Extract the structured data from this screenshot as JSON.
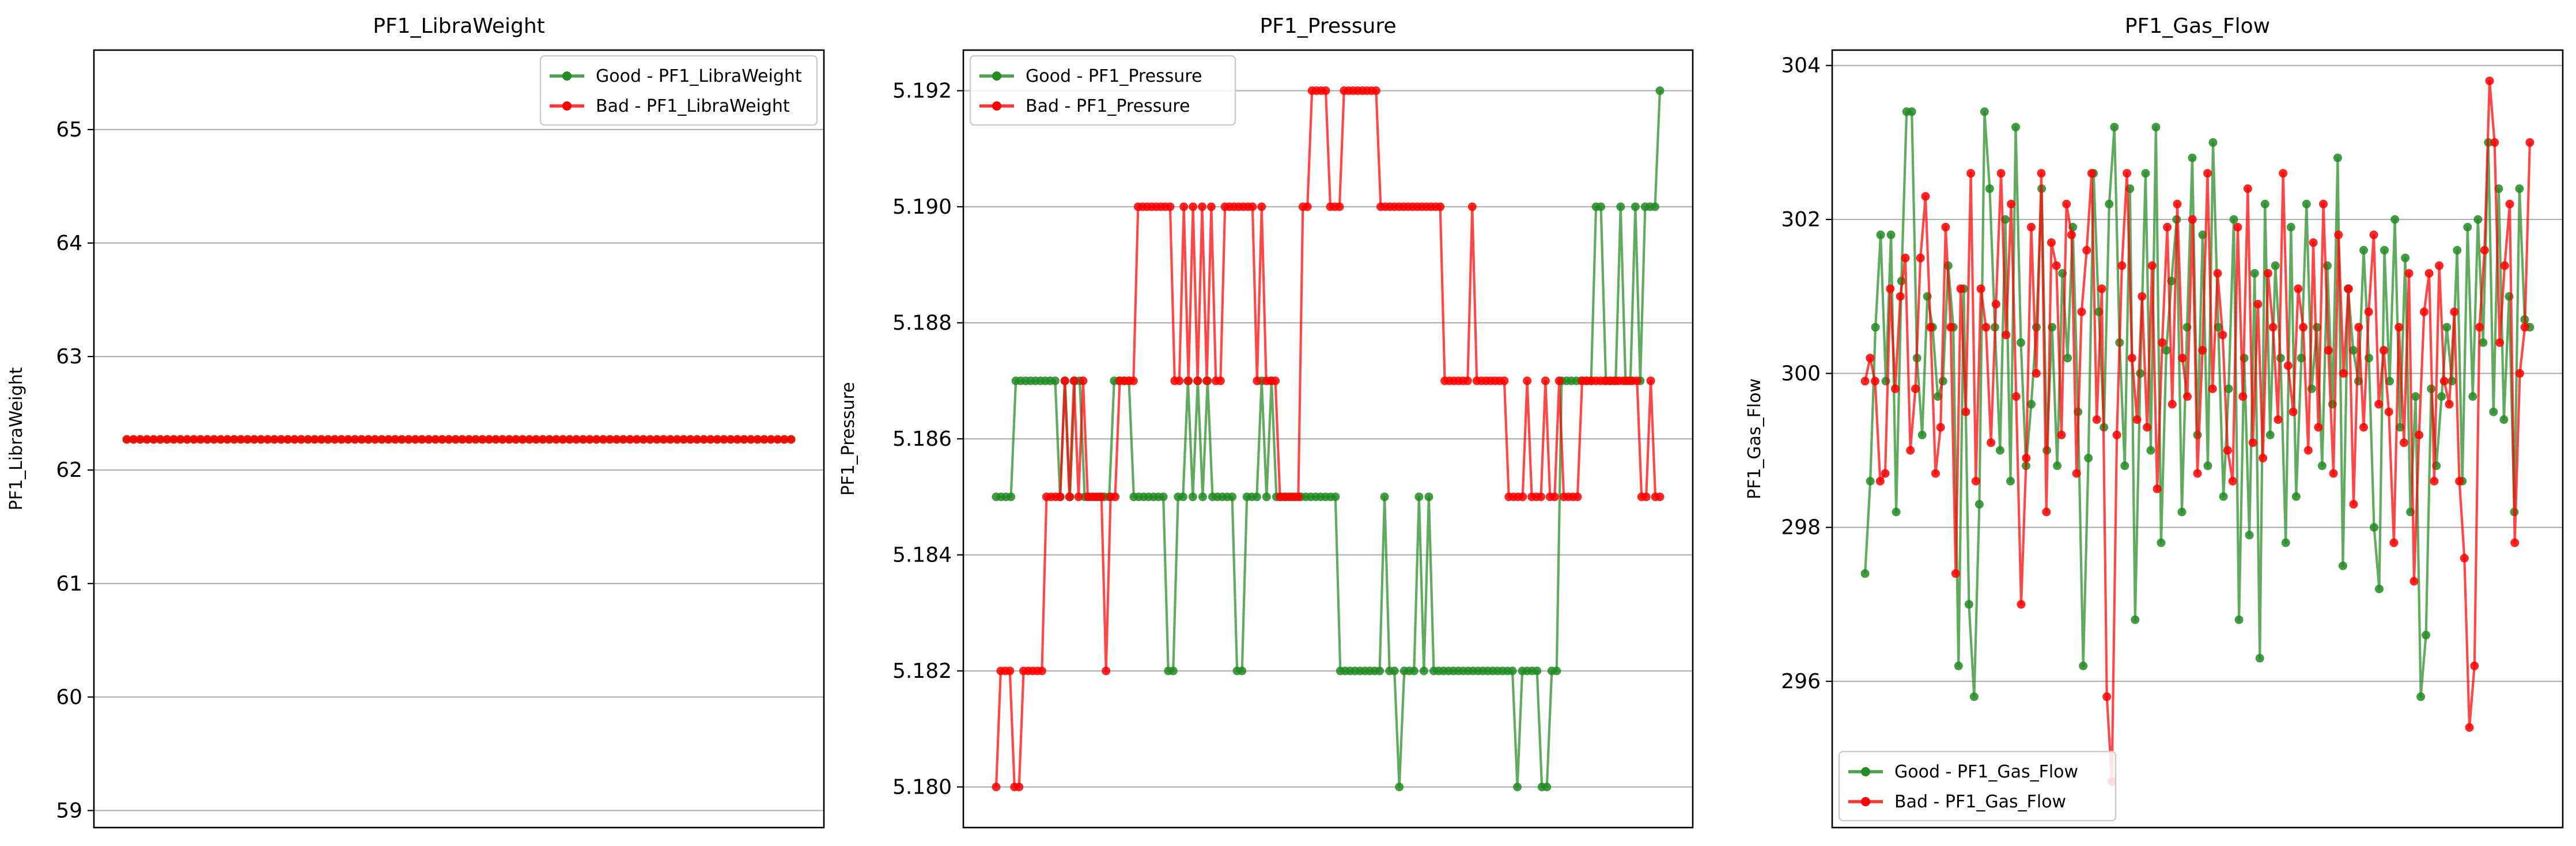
{
  "chart_data": [
    {
      "type": "line",
      "title": "PF1_LibraWeight",
      "xlabel": "",
      "ylabel": "PF1_LibraWeight",
      "ylim": [
        58.85,
        65.7
      ],
      "yticks": [
        59,
        60,
        61,
        62,
        63,
        64,
        65
      ],
      "ytick_labels": [
        "59",
        "60",
        "61",
        "62",
        "63",
        "64",
        "65"
      ],
      "xticks_visible": false,
      "grid": "horizontal",
      "legend": "top-right",
      "series": [
        {
          "name": "Good - PF1_LibraWeight",
          "color": "#228B22",
          "values": [
            62.27,
            62.27,
            62.27,
            62.27,
            62.27,
            62.27,
            62.27,
            62.27,
            62.27,
            62.27,
            62.27,
            62.27,
            62.27,
            62.27,
            62.27,
            62.27,
            62.27,
            62.27,
            62.27,
            62.27,
            62.27,
            62.27,
            62.27,
            62.27,
            62.27,
            62.27,
            62.27,
            62.27,
            62.27,
            62.27,
            62.27,
            62.27,
            62.27,
            62.27,
            62.27,
            62.27,
            62.27,
            62.27,
            62.27,
            62.27,
            62.27,
            62.27,
            62.27,
            62.27,
            62.27,
            62.27,
            62.27,
            62.27,
            62.27,
            62.27,
            62.27,
            62.27,
            62.27,
            62.27,
            62.27,
            62.27,
            62.27,
            62.27,
            62.27,
            62.27,
            62.27,
            62.27,
            62.27,
            62.27,
            62.27,
            62.27,
            62.27,
            62.27,
            62.27,
            62.27,
            62.27,
            62.27,
            62.27,
            62.27,
            62.27,
            62.27,
            62.27,
            62.27,
            62.27,
            62.27,
            62.27,
            62.27,
            62.27,
            62.27,
            62.27,
            62.27,
            62.27,
            62.27,
            62.27,
            62.27,
            62.27,
            62.27,
            62.27,
            62.27,
            62.27,
            62.27,
            62.27,
            62.27,
            62.27,
            62.27
          ]
        },
        {
          "name": "Bad - PF1_LibraWeight",
          "color": "#FF0000",
          "values": [
            62.27,
            62.27,
            62.27,
            62.27,
            62.27,
            62.27,
            62.27,
            62.27,
            62.27,
            62.27,
            62.27,
            62.27,
            62.27,
            62.27,
            62.27,
            62.27,
            62.27,
            62.27,
            62.27,
            62.27,
            62.27,
            62.27,
            62.27,
            62.27,
            62.27,
            62.27,
            62.27,
            62.27,
            62.27,
            62.27,
            62.27,
            62.27,
            62.27,
            62.27,
            62.27,
            62.27,
            62.27,
            62.27,
            62.27,
            62.27,
            62.27,
            62.27,
            62.27,
            62.27,
            62.27,
            62.27,
            62.27,
            62.27,
            62.27,
            62.27,
            62.27,
            62.27,
            62.27,
            62.27,
            62.27,
            62.27,
            62.27,
            62.27,
            62.27,
            62.27,
            62.27,
            62.27,
            62.27,
            62.27,
            62.27,
            62.27,
            62.27,
            62.27,
            62.27,
            62.27,
            62.27,
            62.27,
            62.27,
            62.27,
            62.27,
            62.27,
            62.27,
            62.27,
            62.27,
            62.27,
            62.27,
            62.27,
            62.27,
            62.27,
            62.27,
            62.27,
            62.27,
            62.27,
            62.27,
            62.27,
            62.27,
            62.27,
            62.27,
            62.27,
            62.27,
            62.27,
            62.27,
            62.27,
            62.27,
            62.27
          ]
        }
      ]
    },
    {
      "type": "line",
      "title": "PF1_Pressure",
      "xlabel": "",
      "ylabel": "PF1_Pressure",
      "ylim": [
        5.1793,
        5.1927
      ],
      "yticks": [
        5.18,
        5.182,
        5.184,
        5.186,
        5.188,
        5.19,
        5.192
      ],
      "ytick_labels": [
        "5.180",
        "5.182",
        "5.184",
        "5.186",
        "5.188",
        "5.190",
        "5.192"
      ],
      "xticks_visible": false,
      "grid": "horizontal",
      "legend": "top-left",
      "series": [
        {
          "name": "Good - PF1_Pressure",
          "color": "#228B22",
          "values": [
            5.185,
            5.185,
            5.185,
            5.185,
            5.187,
            5.187,
            5.187,
            5.187,
            5.187,
            5.187,
            5.187,
            5.187,
            5.187,
            5.185,
            5.187,
            5.185,
            5.187,
            5.187,
            5.185,
            5.185,
            5.185,
            5.185,
            5.185,
            5.185,
            5.187,
            5.187,
            5.187,
            5.187,
            5.185,
            5.185,
            5.185,
            5.185,
            5.185,
            5.185,
            5.185,
            5.182,
            5.182,
            5.185,
            5.185,
            5.187,
            5.185,
            5.187,
            5.185,
            5.187,
            5.185,
            5.185,
            5.185,
            5.185,
            5.185,
            5.182,
            5.182,
            5.185,
            5.185,
            5.185,
            5.187,
            5.185,
            5.187,
            5.185,
            5.185,
            5.185,
            5.185,
            5.185,
            5.185,
            5.185,
            5.185,
            5.185,
            5.185,
            5.185,
            5.185,
            5.185,
            5.182,
            5.182,
            5.182,
            5.182,
            5.182,
            5.182,
            5.182,
            5.182,
            5.182,
            5.185,
            5.182,
            5.182,
            5.18,
            5.182,
            5.182,
            5.182,
            5.185,
            5.182,
            5.185,
            5.182,
            5.182,
            5.182,
            5.182,
            5.182,
            5.182,
            5.182,
            5.182,
            5.182,
            5.182,
            5.182,
            5.182,
            5.182,
            5.182,
            5.182,
            5.182,
            5.182,
            5.18,
            5.182,
            5.182,
            5.182,
            5.182,
            5.18,
            5.18,
            5.182,
            5.182,
            5.187,
            5.187,
            5.187,
            5.187,
            5.187,
            5.187,
            5.187,
            5.19,
            5.19,
            5.187,
            5.187,
            5.187,
            5.19,
            5.187,
            5.187,
            5.19,
            5.187,
            5.19,
            5.19,
            5.19,
            5.192
          ]
        },
        {
          "name": "Bad - PF1_Pressure",
          "color": "#FF0000",
          "values": [
            5.18,
            5.182,
            5.182,
            5.182,
            5.18,
            5.18,
            5.182,
            5.182,
            5.182,
            5.182,
            5.182,
            5.185,
            5.185,
            5.185,
            5.185,
            5.187,
            5.185,
            5.187,
            5.185,
            5.187,
            5.185,
            5.185,
            5.185,
            5.185,
            5.182,
            5.185,
            5.185,
            5.187,
            5.187,
            5.187,
            5.187,
            5.19,
            5.19,
            5.19,
            5.19,
            5.19,
            5.19,
            5.19,
            5.19,
            5.187,
            5.187,
            5.19,
            5.187,
            5.19,
            5.187,
            5.19,
            5.187,
            5.19,
            5.187,
            5.187,
            5.19,
            5.19,
            5.19,
            5.19,
            5.19,
            5.19,
            5.19,
            5.187,
            5.19,
            5.187,
            5.187,
            5.187,
            5.185,
            5.185,
            5.185,
            5.185,
            5.185,
            5.19,
            5.19,
            5.192,
            5.192,
            5.192,
            5.192,
            5.19,
            5.19,
            5.19,
            5.192,
            5.192,
            5.192,
            5.192,
            5.192,
            5.192,
            5.192,
            5.192,
            5.19,
            5.19,
            5.19,
            5.19,
            5.19,
            5.19,
            5.19,
            5.19,
            5.19,
            5.19,
            5.19,
            5.19,
            5.19,
            5.19,
            5.187,
            5.187,
            5.187,
            5.187,
            5.187,
            5.187,
            5.19,
            5.187,
            5.187,
            5.187,
            5.187,
            5.187,
            5.187,
            5.187,
            5.185,
            5.185,
            5.185,
            5.185,
            5.187,
            5.185,
            5.185,
            5.185,
            5.187,
            5.185,
            5.185,
            5.187,
            5.185,
            5.185,
            5.185,
            5.185,
            5.187,
            5.187,
            5.187,
            5.187,
            5.187,
            5.187,
            5.187,
            5.187,
            5.187,
            5.187,
            5.187,
            5.187,
            5.187,
            5.185,
            5.185,
            5.187,
            5.185,
            5.185
          ]
        }
      ]
    },
    {
      "type": "line",
      "title": "PF1_Gas_Flow",
      "xlabel": "",
      "ylabel": "PF1_Gas_Flow",
      "ylim": [
        294.1,
        304.2
      ],
      "yticks": [
        296,
        298,
        300,
        302,
        304
      ],
      "ytick_labels": [
        "296",
        "298",
        "300",
        "302",
        "304"
      ],
      "xticks_visible": false,
      "grid": "horizontal",
      "legend": "bottom-left",
      "series": [
        {
          "name": "Good - PF1_Gas_Flow",
          "color": "#228B22",
          "values": [
            297.4,
            298.6,
            300.6,
            301.8,
            299.9,
            301.8,
            298.2,
            301.2,
            303.4,
            303.4,
            300.2,
            299.2,
            301.0,
            300.6,
            299.7,
            299.9,
            301.4,
            300.6,
            296.2,
            301.1,
            297.0,
            295.8,
            298.3,
            303.4,
            302.4,
            300.6,
            299.0,
            302.0,
            298.6,
            303.2,
            300.4,
            298.8,
            299.6,
            300.6,
            302.4,
            299.0,
            300.6,
            298.8,
            301.3,
            300.2,
            301.9,
            299.5,
            296.2,
            298.9,
            302.6,
            300.8,
            299.3,
            302.2,
            303.2,
            300.4,
            298.8,
            302.4,
            296.8,
            300.0,
            302.6,
            299.0,
            303.2,
            297.8,
            300.3,
            301.2,
            302.0,
            298.2,
            300.6,
            302.8,
            299.2,
            301.8,
            298.8,
            303.0,
            300.6,
            298.4,
            299.8,
            302.0,
            296.8,
            300.2,
            297.9,
            301.3,
            296.3,
            302.2,
            299.2,
            301.4,
            300.2,
            297.8,
            301.9,
            298.4,
            300.2,
            302.2,
            299.8,
            300.6,
            298.8,
            301.4,
            299.6,
            302.8,
            297.5,
            301.1,
            300.3,
            299.9,
            301.6,
            300.2,
            298.0,
            297.2,
            301.6,
            299.9,
            302.0,
            299.3,
            301.5,
            298.2,
            299.7,
            295.8,
            296.6,
            299.8,
            298.8,
            299.7,
            300.6,
            299.9,
            301.6,
            298.6,
            301.9,
            299.7,
            302.0,
            300.4,
            303.0,
            299.5,
            302.4,
            299.4,
            301.0,
            298.2,
            302.4,
            300.7,
            300.6
          ]
        },
        {
          "name": "Bad - PF1_Gas_Flow",
          "color": "#FF0000",
          "values": [
            299.9,
            300.2,
            299.9,
            298.6,
            298.7,
            301.1,
            299.8,
            301.0,
            301.5,
            299.0,
            299.8,
            301.5,
            302.3,
            300.6,
            298.7,
            299.3,
            301.9,
            300.6,
            297.4,
            301.1,
            299.5,
            302.6,
            298.6,
            301.1,
            300.6,
            299.1,
            300.9,
            302.6,
            300.5,
            302.2,
            299.7,
            297.0,
            298.9,
            301.9,
            300.0,
            302.6,
            298.2,
            301.7,
            301.4,
            299.2,
            302.2,
            301.8,
            298.7,
            300.8,
            301.6,
            302.6,
            299.4,
            301.1,
            295.8,
            294.7,
            299.2,
            301.4,
            302.6,
            300.2,
            299.4,
            301.0,
            299.3,
            301.4,
            298.5,
            300.4,
            301.9,
            299.6,
            302.2,
            300.2,
            299.7,
            302.0,
            298.7,
            300.3,
            302.6,
            299.8,
            301.3,
            300.5,
            299.0,
            298.6,
            301.9,
            299.7,
            302.4,
            299.1,
            300.9,
            298.9,
            301.3,
            300.6,
            299.4,
            302.6,
            300.1,
            299.5,
            301.1,
            300.6,
            299.0,
            301.7,
            299.3,
            302.2,
            300.3,
            298.7,
            301.8,
            300.0,
            301.1,
            298.3,
            300.6,
            299.3,
            300.8,
            301.8,
            299.6,
            300.3,
            299.5,
            297.8,
            300.6,
            299.1,
            301.3,
            297.3,
            299.2,
            300.8,
            301.3,
            298.6,
            301.4,
            299.9,
            299.6,
            300.8,
            298.6,
            297.6,
            295.4,
            296.2,
            300.6,
            301.6,
            303.8,
            303.0,
            300.4,
            301.4,
            302.2,
            297.8,
            300.0,
            300.6,
            303.0
          ]
        }
      ]
    }
  ]
}
